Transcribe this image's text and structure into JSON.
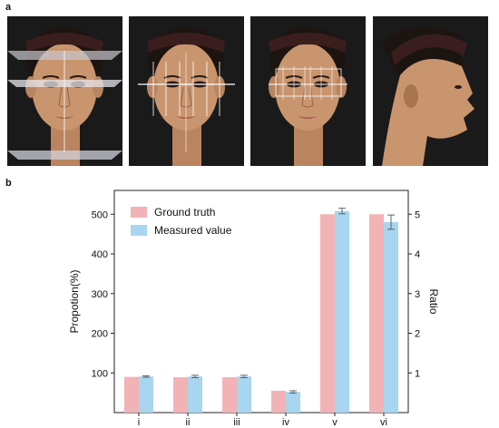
{
  "panels": {
    "a": "a",
    "b": "b"
  },
  "figure_colors": {
    "ground_truth": "#f2b3b6",
    "measured": "#a8d5ef",
    "skin": "#c9956e",
    "headband": "#3a1e1e"
  },
  "photos": [
    {
      "name": "face-photo-front-thirds",
      "view": "front"
    },
    {
      "name": "face-photo-front-fifths",
      "view": "front"
    },
    {
      "name": "face-photo-front-eyes",
      "view": "front"
    },
    {
      "name": "face-photo-profile",
      "view": "profile"
    }
  ],
  "chart_data": {
    "type": "bar",
    "categories": [
      "i",
      "ii",
      "iii",
      "iv",
      "v",
      "vi"
    ],
    "series": [
      {
        "name": "Ground truth",
        "values": [
          90,
          89,
          89,
          55,
          500,
          500
        ],
        "errors": [
          0,
          0,
          0,
          0,
          0,
          0
        ]
      },
      {
        "name": "Measured value",
        "values": [
          91,
          91,
          91,
          52,
          508,
          480
        ],
        "errors": [
          2,
          3,
          3,
          3,
          7,
          18
        ]
      }
    ],
    "ylabel": "Propotion(%)",
    "y2label": "Ratio",
    "ylim": [
      0,
      560
    ],
    "yticks": [
      100,
      200,
      300,
      400,
      500
    ],
    "y2ticks": [
      1,
      2,
      3,
      4,
      5
    ],
    "y2_scale": 0.01,
    "legend_position": "top-left",
    "grid": false
  }
}
